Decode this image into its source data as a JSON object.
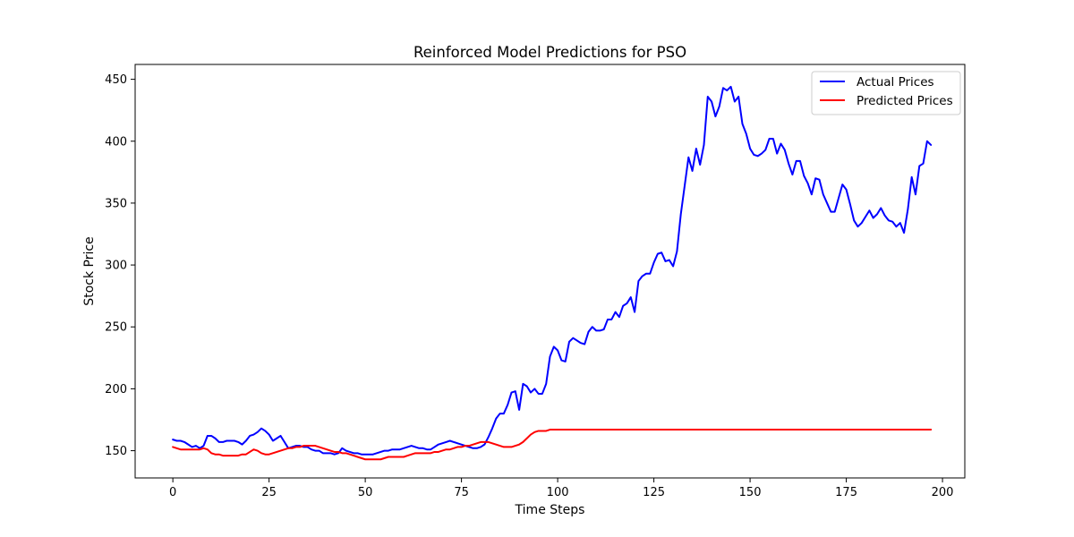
{
  "chart_data": {
    "type": "line",
    "title": "Reinforced Model Predictions for PSO",
    "xlabel": "Time Steps",
    "ylabel": "Stock Price",
    "xlim": [
      -9.8,
      205.8
    ],
    "ylim": [
      128,
      462
    ],
    "xticks": [
      0,
      25,
      50,
      75,
      100,
      125,
      150,
      175,
      200
    ],
    "yticks": [
      150,
      200,
      250,
      300,
      350,
      400,
      450
    ],
    "grid": false,
    "legend_position": "top-right",
    "series": [
      {
        "name": "Actual Prices",
        "color": "#0000ff",
        "values": [
          159,
          158,
          158,
          157,
          155,
          153,
          154,
          152,
          154,
          162,
          162,
          160,
          157,
          157,
          158,
          158,
          158,
          157,
          155,
          158,
          162,
          163,
          165,
          168,
          166,
          163,
          158,
          160,
          162,
          157,
          152,
          153,
          154,
          154,
          153,
          153,
          151,
          150,
          150,
          148,
          148,
          148,
          147,
          148,
          152,
          150,
          149,
          148,
          148,
          147,
          147,
          147,
          147,
          148,
          149,
          150,
          150,
          151,
          151,
          151,
          152,
          153,
          154,
          153,
          152,
          152,
          151,
          151,
          153,
          155,
          156,
          157,
          158,
          157,
          156,
          155,
          154,
          153,
          152,
          152,
          153,
          155,
          161,
          168,
          176,
          180,
          180,
          187,
          197,
          198,
          183,
          204,
          202,
          197,
          200,
          196,
          196,
          204,
          226,
          234,
          231,
          223,
          222,
          238,
          241,
          239,
          237,
          236,
          246,
          250,
          247,
          247,
          248,
          256,
          256,
          262,
          258,
          267,
          269,
          274,
          262,
          287,
          291,
          293,
          293,
          302,
          309,
          310,
          303,
          304,
          299,
          311,
          341,
          364,
          387,
          376,
          394,
          381,
          397,
          436,
          432,
          420,
          428,
          443,
          441,
          444,
          432,
          436,
          414,
          406,
          394,
          389,
          388,
          390,
          393,
          402,
          402,
          390,
          398,
          393,
          382,
          373,
          384,
          384,
          372,
          366,
          357,
          370,
          369,
          357,
          350,
          343,
          343,
          354,
          365,
          361,
          349,
          336,
          331,
          334,
          339,
          344,
          338,
          341,
          346,
          340,
          336,
          335,
          331,
          334,
          326,
          345,
          371,
          357,
          380,
          382,
          400,
          397
        ]
      },
      {
        "name": "Predicted Prices",
        "color": "#ff0000",
        "values": [
          153,
          152,
          151,
          151,
          151,
          151,
          151,
          151,
          152,
          151,
          148,
          147,
          147,
          146,
          146,
          146,
          146,
          146,
          147,
          147,
          149,
          151,
          150,
          148,
          147,
          147,
          148,
          149,
          150,
          151,
          152,
          152,
          153,
          153,
          154,
          154,
          154,
          154,
          153,
          152,
          151,
          150,
          149,
          149,
          148,
          148,
          147,
          146,
          145,
          144,
          143,
          143,
          143,
          143,
          143,
          144,
          145,
          145,
          145,
          145,
          145,
          146,
          147,
          148,
          148,
          148,
          148,
          148,
          149,
          149,
          150,
          151,
          151,
          152,
          153,
          153,
          154,
          154,
          155,
          156,
          157,
          157,
          157,
          156,
          155,
          154,
          153,
          153,
          153,
          154,
          155,
          157,
          160,
          163,
          165,
          166,
          166,
          166,
          167,
          167,
          167,
          167,
          167,
          167,
          167,
          167,
          167,
          167,
          167,
          167,
          167,
          167,
          167,
          167,
          167,
          167,
          167,
          167,
          167,
          167,
          167,
          167,
          167,
          167,
          167,
          167,
          167,
          167,
          167,
          167,
          167,
          167,
          167,
          167,
          167,
          167,
          167,
          167,
          167,
          167,
          167,
          167,
          167,
          167,
          167,
          167,
          167,
          167,
          167,
          167,
          167,
          167,
          167,
          167,
          167,
          167,
          167,
          167,
          167,
          167,
          167,
          167,
          167,
          167,
          167,
          167,
          167,
          167,
          167,
          167,
          167,
          167,
          167,
          167,
          167,
          167,
          167,
          167,
          167,
          167,
          167,
          167,
          167,
          167,
          167,
          167,
          167,
          167,
          167,
          167,
          167,
          167,
          167,
          167,
          167,
          167,
          167,
          167
        ]
      }
    ]
  }
}
